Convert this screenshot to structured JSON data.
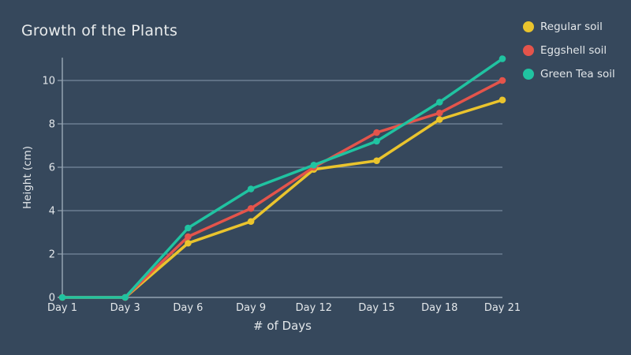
{
  "page": {
    "background_color": "#36485C"
  },
  "chart_data": {
    "type": "line",
    "title": "Growth of the Plants",
    "xlabel": "# of Days",
    "ylabel": "Height (cm)",
    "categories": [
      "Day 1",
      "Day 3",
      "Day 6",
      "Day 9",
      "Day 12",
      "Day 15",
      "Day 18",
      "Day 21"
    ],
    "yticks": [
      0,
      2,
      4,
      6,
      8,
      10
    ],
    "ylim": [
      0,
      11.05
    ],
    "grid": true,
    "legend_position": "top-right",
    "series": [
      {
        "name": "Regular soil",
        "color": "#EAC42D",
        "values": [
          0,
          0,
          2.5,
          3.5,
          5.9,
          6.3,
          8.2,
          9.1
        ]
      },
      {
        "name": "Eggshell soil",
        "color": "#E4544B",
        "values": [
          0,
          0,
          2.8,
          4.1,
          6.0,
          7.6,
          8.5,
          10.0
        ]
      },
      {
        "name": "Green Tea soil",
        "color": "#20C3A1",
        "values": [
          0,
          0,
          3.2,
          5.0,
          6.1,
          7.2,
          9.0,
          11.0
        ]
      }
    ]
  },
  "style": {
    "axis_color": "#94A3B1",
    "grid_color": "#76889B",
    "text_color": "#E3E7EA"
  }
}
